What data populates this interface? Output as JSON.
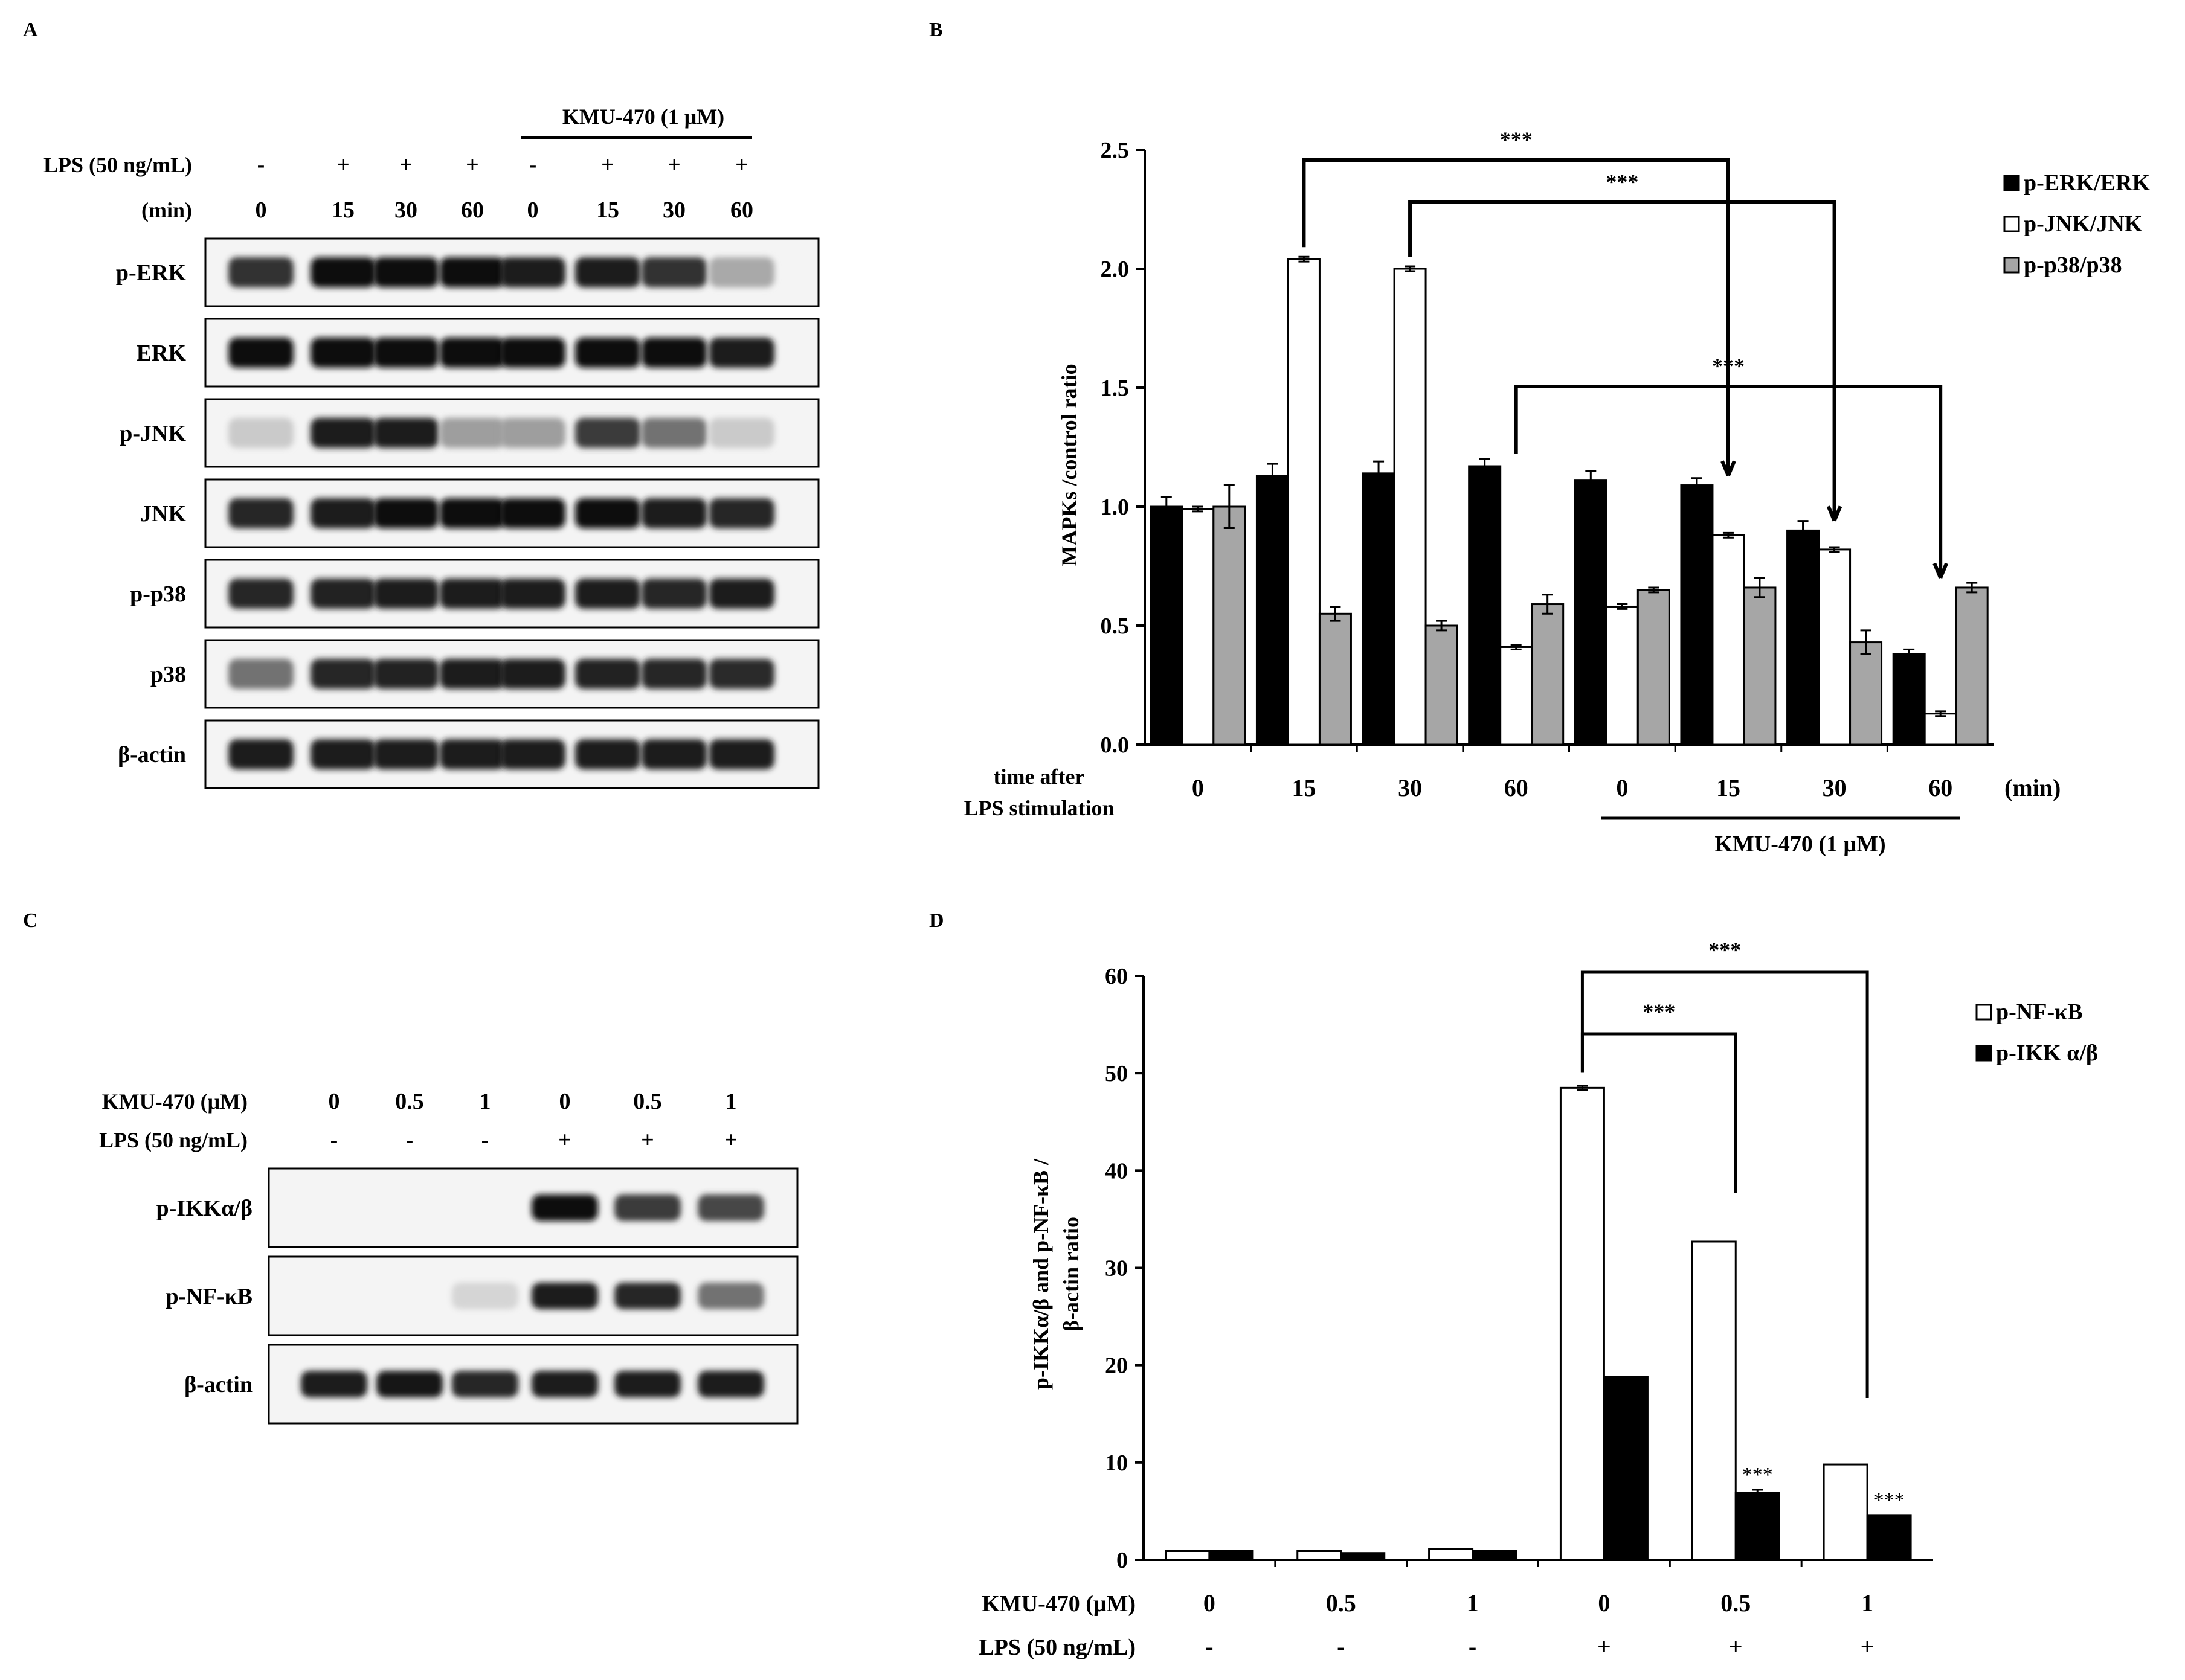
{
  "panels": {
    "A": "A",
    "B": "B",
    "C": "C",
    "D": "D"
  },
  "blot_a": {
    "kmu_label": "KMU-470 (1 μM)",
    "lps_label": "LPS (50 ng/mL)",
    "min_label": "(min)",
    "lps_signs": [
      "-",
      "+",
      "+",
      "+",
      "-",
      "+",
      "+",
      "+"
    ],
    "min_values": [
      "0",
      "15",
      "30",
      "60",
      "0",
      "15",
      "30",
      "60"
    ],
    "rows": [
      {
        "label": "p-ERK",
        "intensity": [
          0.85,
          1.0,
          1.0,
          1.0,
          0.95,
          0.95,
          0.85,
          0.3
        ]
      },
      {
        "label": "ERK",
        "intensity": [
          1.0,
          1.0,
          1.0,
          1.0,
          1.0,
          1.0,
          1.0,
          0.95
        ]
      },
      {
        "label": "p-JNK",
        "intensity": [
          0.15,
          0.95,
          0.95,
          0.35,
          0.35,
          0.8,
          0.55,
          0.15
        ]
      },
      {
        "label": "JNK",
        "intensity": [
          0.9,
          0.95,
          1.0,
          1.0,
          1.0,
          1.0,
          0.95,
          0.9
        ]
      },
      {
        "label": "p-p38",
        "intensity": [
          0.9,
          0.92,
          0.95,
          0.95,
          0.95,
          0.95,
          0.9,
          0.95
        ]
      },
      {
        "label": "p38",
        "intensity": [
          0.55,
          0.9,
          0.92,
          0.95,
          0.95,
          0.92,
          0.9,
          0.88
        ]
      },
      {
        "label": "β-actin",
        "intensity": [
          0.95,
          0.95,
          0.95,
          0.95,
          0.95,
          0.95,
          0.95,
          0.95
        ]
      }
    ]
  },
  "blot_c": {
    "kmu_label": "KMU-470  (μM)",
    "lps_label": "LPS (50 ng/mL)",
    "kmu_values": [
      "0",
      "0.5",
      "1",
      "0",
      "0.5",
      "1"
    ],
    "lps_signs": [
      "-",
      "-",
      "-",
      "+",
      "+",
      "+"
    ],
    "rows": [
      {
        "label": "p-IKKα/β",
        "intensity": [
          0.0,
          0.0,
          0.0,
          1.0,
          0.8,
          0.75
        ]
      },
      {
        "label": "p-NF-κB",
        "intensity": [
          0.0,
          0.0,
          0.1,
          0.95,
          0.9,
          0.55
        ]
      },
      {
        "label": "β-actin",
        "intensity": [
          0.95,
          0.98,
          0.9,
          0.95,
          0.95,
          0.95
        ]
      }
    ]
  },
  "chart_b_labels": {
    "x_row_label_1": "time after",
    "x_row_label_2": "LPS stimulation",
    "unit": "(min)",
    "kmu_label": "KMU-470 (1 μM)",
    "sig": "***"
  },
  "chart_d_labels": {
    "ylabel_1": "p-IKKα/β  and p-NF-κB  /",
    "ylabel_2": "β-actin ratio",
    "kmu_row_label": "KMU-470 (μM)",
    "lps_row_label": "LPS (50 ng/mL)",
    "kmu_values": [
      "0",
      "0.5",
      "1",
      "0",
      "0.5",
      "1"
    ],
    "lps_signs": [
      "-",
      "-",
      "-",
      "+",
      "+",
      "+"
    ],
    "sig": "***"
  },
  "chart_data": [
    {
      "type": "bar",
      "panel": "B",
      "categories": [
        "0",
        "15",
        "30",
        "60",
        "0",
        "15",
        "30",
        "60"
      ],
      "ylabel": "MAPKs /control ratio",
      "ylim": [
        0,
        2.5
      ],
      "yticks": [
        "0.0",
        "0.5",
        "1.0",
        "1.5",
        "2.0",
        "2.5"
      ],
      "legend_position": "top-right",
      "series": [
        {
          "name": "p-ERK/ERK",
          "color": "#000000",
          "values": [
            1.0,
            1.13,
            1.14,
            1.17,
            1.11,
            1.09,
            0.9,
            0.38
          ],
          "errors": [
            0.04,
            0.05,
            0.05,
            0.03,
            0.04,
            0.03,
            0.04,
            0.02
          ]
        },
        {
          "name": "p-JNK/JNK",
          "color": "#ffffff",
          "values": [
            0.99,
            2.04,
            2.0,
            0.41,
            0.58,
            0.88,
            0.82,
            0.13
          ],
          "errors": [
            0.01,
            0.01,
            0.01,
            0.01,
            0.01,
            0.01,
            0.01,
            0.01
          ]
        },
        {
          "name": "p-p38/p38",
          "color": "#a6a6a6",
          "values": [
            1.0,
            0.55,
            0.5,
            0.59,
            0.65,
            0.66,
            0.43,
            0.66
          ],
          "errors": [
            0.09,
            0.03,
            0.02,
            0.04,
            0.01,
            0.04,
            0.05,
            0.02
          ]
        }
      ],
      "significance": [
        "***",
        "***",
        "***"
      ]
    },
    {
      "type": "bar",
      "panel": "D",
      "categories": [
        "0 / -",
        "0.5 / -",
        "1 / -",
        "0 / +",
        "0.5 / +",
        "1 / +"
      ],
      "ylim": [
        0,
        60
      ],
      "yticks": [
        "0",
        "10",
        "20",
        "30",
        "40",
        "50",
        "60"
      ],
      "legend_position": "top-right",
      "series": [
        {
          "name": "p-NF-κB",
          "color": "#ffffff",
          "values": [
            0.9,
            0.9,
            1.1,
            48.5,
            32.7,
            9.8
          ],
          "errors": [
            0,
            0,
            0,
            0.2,
            0,
            0
          ]
        },
        {
          "name": "p-IKK  α/β",
          "color": "#000000",
          "values": [
            0.9,
            0.7,
            0.9,
            18.8,
            6.9,
            4.6
          ],
          "errors": [
            0,
            0,
            0,
            0,
            0.3,
            0
          ]
        }
      ],
      "significance": [
        "***",
        "***",
        "***",
        "***"
      ]
    }
  ]
}
